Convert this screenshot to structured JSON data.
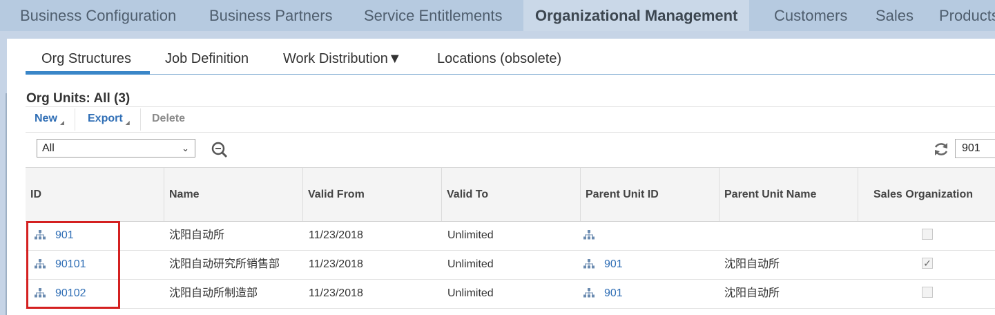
{
  "top_nav": {
    "items": [
      {
        "label": "Business Configuration"
      },
      {
        "label": "Business Partners"
      },
      {
        "label": "Service Entitlements"
      },
      {
        "label": "Organizational Management",
        "active": true
      },
      {
        "label": "Customers"
      },
      {
        "label": "Sales"
      },
      {
        "label": "Products"
      }
    ]
  },
  "sub_tabs": [
    {
      "label": "Org Structures",
      "active": true
    },
    {
      "label": "Job Definition"
    },
    {
      "label": "Work Distribution▼"
    },
    {
      "label": "Locations (obsolete)"
    }
  ],
  "section": {
    "title": "Org Units: All (3)"
  },
  "toolbar": {
    "new_label": "New",
    "export_label": "Export",
    "delete_label": "Delete"
  },
  "filter": {
    "select_value": "All",
    "search_value": "901"
  },
  "table": {
    "columns": [
      "ID",
      "Name",
      "Valid From",
      "Valid To",
      "Parent Unit ID",
      "Parent Unit Name",
      "Sales Organization"
    ],
    "rows": [
      {
        "id": "901",
        "name": "沈阳自动所",
        "valid_from": "11/23/2018",
        "valid_to": "Unlimited",
        "parent_id": "",
        "parent_name": "",
        "sales_org": false
      },
      {
        "id": "90101",
        "name": "沈阳自动研究所销售部",
        "valid_from": "11/23/2018",
        "valid_to": "Unlimited",
        "parent_id": "901",
        "parent_name": "沈阳自动所",
        "sales_org": true
      },
      {
        "id": "90102",
        "name": "沈阳自动所制造部",
        "valid_from": "11/23/2018",
        "valid_to": "Unlimited",
        "parent_id": "901",
        "parent_name": "沈阳自动所",
        "sales_org": false
      }
    ]
  },
  "colors": {
    "link": "#2f6eb5",
    "nav_bg": "#b6cae0",
    "active_tab": "#3a86c8",
    "highlight": "#d42020"
  },
  "icons": [
    "org-unit-icon",
    "search-icon",
    "refresh-icon",
    "chevron-down-icon"
  ]
}
